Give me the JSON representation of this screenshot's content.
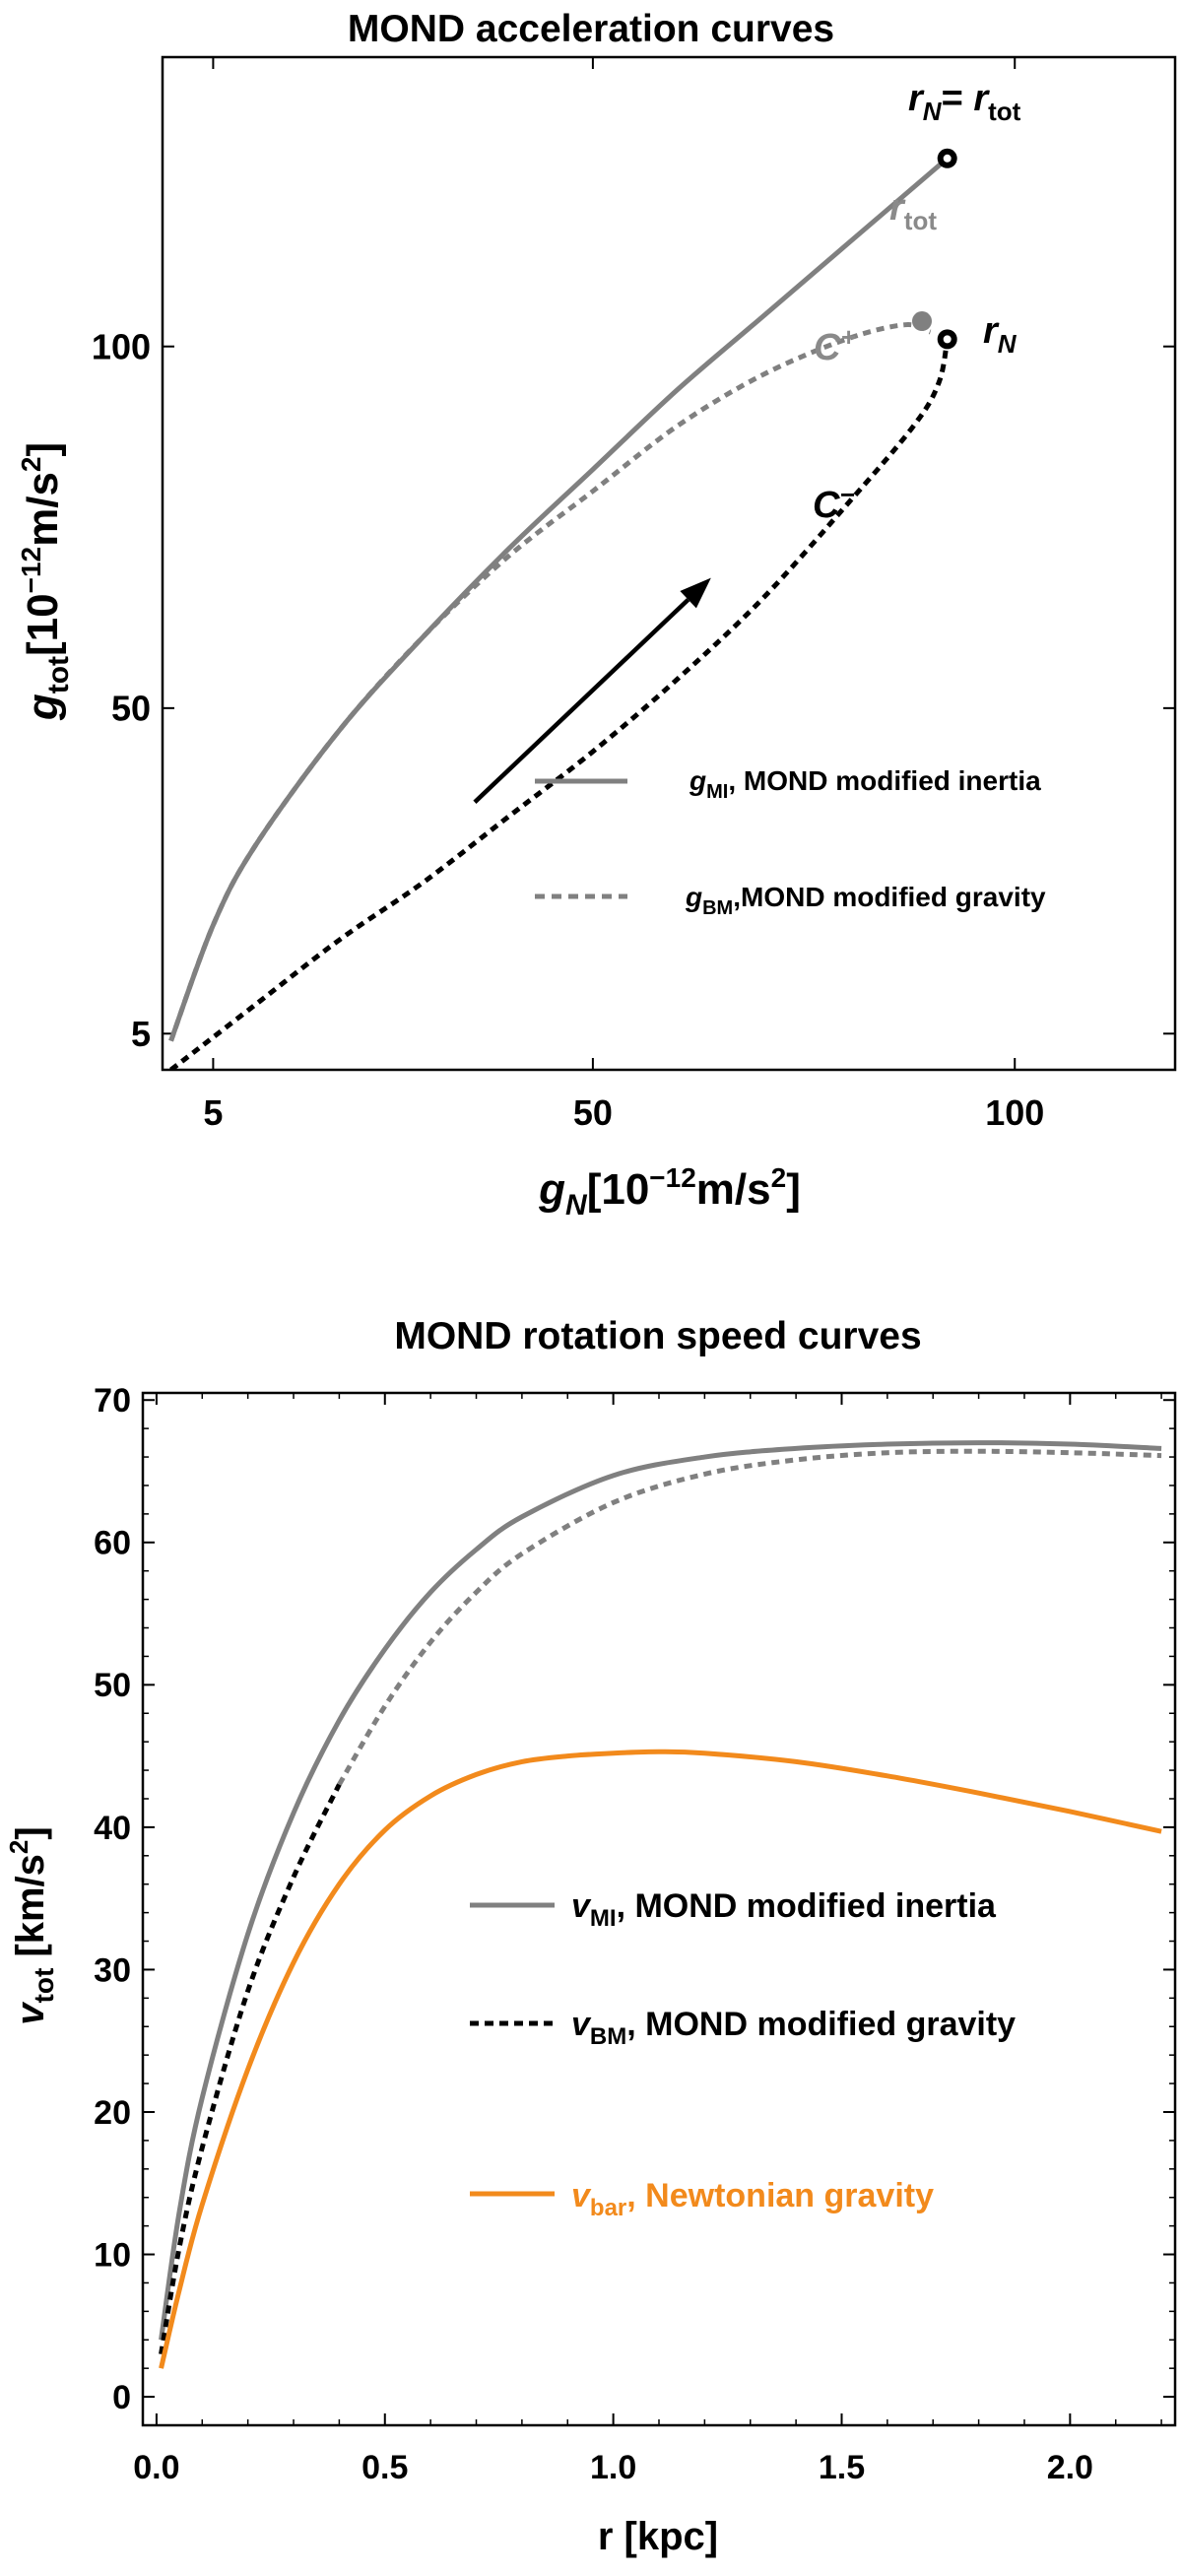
{
  "chart_data": [
    {
      "type": "line",
      "title": "MOND acceleration curves",
      "xlabel": {
        "sym": "g",
        "sub": "N",
        "unit": "[10",
        "exp": "−12",
        "unit2": "m/s",
        "exp2": "2",
        "close": "]"
      },
      "ylabel": {
        "sym": "g",
        "sub": "tot",
        "unit": "[10",
        "exp": "−12",
        "unit2": "m/s",
        "exp2": "2",
        "close": "]"
      },
      "xticks": [
        5,
        50,
        100
      ],
      "xtick_labels": [
        "5",
        "50",
        "100"
      ],
      "yticks": [
        5,
        50,
        100
      ],
      "ytick_labels": [
        "5",
        "50",
        "100"
      ],
      "series": [
        {
          "name": "g_MI, MOND modified inertia",
          "color": "#808080",
          "style": "solid",
          "x": [
            0,
            5,
            10,
            20,
            30,
            40,
            50,
            60,
            70,
            80,
            90,
            92
          ],
          "y": [
            4,
            20,
            31,
            47,
            60,
            72,
            83,
            94,
            104,
            114,
            124,
            126
          ]
        },
        {
          "name": "g_BM, MOND modified gravity (C+)",
          "color": "#808080",
          "style": "dashed",
          "x": [
            0,
            5,
            10,
            20,
            30,
            40,
            50,
            60,
            70,
            80,
            87,
            90
          ],
          "y": [
            4,
            20,
            31,
            47,
            60,
            71,
            80,
            89,
            96,
            101,
            103,
            102
          ]
        },
        {
          "name": "C− branch",
          "color": "#000000",
          "style": "dashed",
          "x": [
            0,
            10,
            20,
            30,
            40,
            50,
            60,
            70,
            80,
            88,
            91,
            92
          ],
          "y": [
            0,
            9,
            18,
            26,
            35,
            44,
            54,
            65,
            78,
            89,
            95,
            101
          ]
        },
        {
          "name": "direction arrow",
          "color": "#000000",
          "style": "arrow",
          "x": [
            36,
            64
          ],
          "y": [
            37,
            68
          ]
        }
      ],
      "points": [
        {
          "label": "rN_eq_rtot",
          "x": 92,
          "y": 126,
          "color": "#000000"
        },
        {
          "label": "rtot",
          "x": 89,
          "y": 103.5,
          "color": "#808080"
        },
        {
          "label": "rN",
          "x": 92,
          "y": 101,
          "color": "#000000"
        }
      ],
      "annotations": {
        "rN_eq_rtot": {
          "sym": "r",
          "sub": "N",
          "mid": "= ",
          "sym2": "r",
          "sub2": "tot"
        },
        "rtot": {
          "sym": "r",
          "sub": "tot"
        },
        "rN": {
          "sym": "r",
          "sub": "N"
        },
        "cplus": {
          "sym": "C",
          "sup": "+"
        },
        "cminus": {
          "sym": "C",
          "sup": "−"
        }
      },
      "legend": [
        {
          "sym": "g",
          "sub": "MI",
          "text": ", MOND modified inertia",
          "color": "#808080",
          "style": "solid"
        },
        {
          "sym": "g",
          "sub": "BM",
          "text": ",MOND modified gravity",
          "color": "#808080",
          "style": "dashed"
        }
      ],
      "xlim": [
        -1,
        119
      ],
      "ylim": [
        0,
        140
      ]
    },
    {
      "type": "line",
      "title": "MOND rotation speed curves",
      "xlabel": "r [kpc]",
      "ylabel": {
        "sym": "v",
        "sub": "tot",
        "unit": " [km/s",
        "exp": "2",
        "close": "]"
      },
      "xticks": [
        0.0,
        0.5,
        1.0,
        1.5,
        2.0
      ],
      "xtick_labels": [
        "0.0",
        "0.5",
        "1.0",
        "1.5",
        "2.0"
      ],
      "yticks": [
        0,
        10,
        20,
        30,
        40,
        50,
        60,
        70
      ],
      "ytick_labels": [
        "0",
        "10",
        "20",
        "30",
        "40",
        "50",
        "60",
        "70"
      ],
      "series": [
        {
          "name": "v_MI, MOND modified inertia",
          "color": "#808080",
          "style": "solid",
          "x": [
            0.01,
            0.05,
            0.1,
            0.2,
            0.3,
            0.4,
            0.5,
            0.6,
            0.7,
            0.8,
            1.0,
            1.2,
            1.4,
            1.6,
            1.8,
            2.0,
            2.2
          ],
          "y": [
            4,
            13,
            21,
            32.5,
            41,
            47.5,
            52.5,
            56.5,
            59.5,
            61.8,
            64.7,
            66.0,
            66.6,
            66.9,
            67.0,
            66.9,
            66.6
          ]
        },
        {
          "name": "v_BM, MOND modified gravity (inner)",
          "color": "#000000",
          "style": "dashed",
          "x": [
            0.01,
            0.05,
            0.1,
            0.2,
            0.3,
            0.4
          ],
          "y": [
            3,
            10.5,
            17.5,
            28.5,
            36.5,
            43
          ]
        },
        {
          "name": "v_BM, MOND modified gravity (outer)",
          "color": "#808080",
          "style": "dashed",
          "x": [
            0.4,
            0.5,
            0.6,
            0.7,
            0.8,
            1.0,
            1.2,
            1.4,
            1.6,
            1.8,
            2.0,
            2.2
          ],
          "y": [
            43,
            48.5,
            53,
            56.5,
            59.2,
            62.8,
            64.8,
            65.8,
            66.3,
            66.4,
            66.3,
            66.1
          ]
        },
        {
          "name": "v_bar, Newtonian gravity",
          "color": "#f28a1c",
          "style": "solid",
          "x": [
            0.01,
            0.05,
            0.1,
            0.2,
            0.3,
            0.4,
            0.5,
            0.6,
            0.7,
            0.8,
            0.9,
            1.0,
            1.1,
            1.2,
            1.4,
            1.6,
            1.8,
            2.0,
            2.2
          ],
          "y": [
            2,
            7.5,
            13.5,
            23,
            30.5,
            36,
            39.8,
            42.2,
            43.7,
            44.6,
            45.0,
            45.2,
            45.3,
            45.2,
            44.6,
            43.6,
            42.4,
            41.1,
            39.7
          ]
        }
      ],
      "legend": [
        {
          "sym": "v",
          "sub": "MI",
          "text": ", MOND modified inertia",
          "color": "#808080",
          "style": "solid"
        },
        {
          "sym": "v",
          "sub": "BM",
          "text": ", MOND modified gravity",
          "color": "#000000",
          "style": "dashed"
        },
        {
          "sym": "v",
          "sub": "bar",
          "text": ", Newtonian gravity",
          "color": "#f28a1c",
          "style": "solid"
        }
      ],
      "xlim": [
        -0.03,
        2.23
      ],
      "ylim": [
        -2,
        70.5
      ]
    }
  ]
}
